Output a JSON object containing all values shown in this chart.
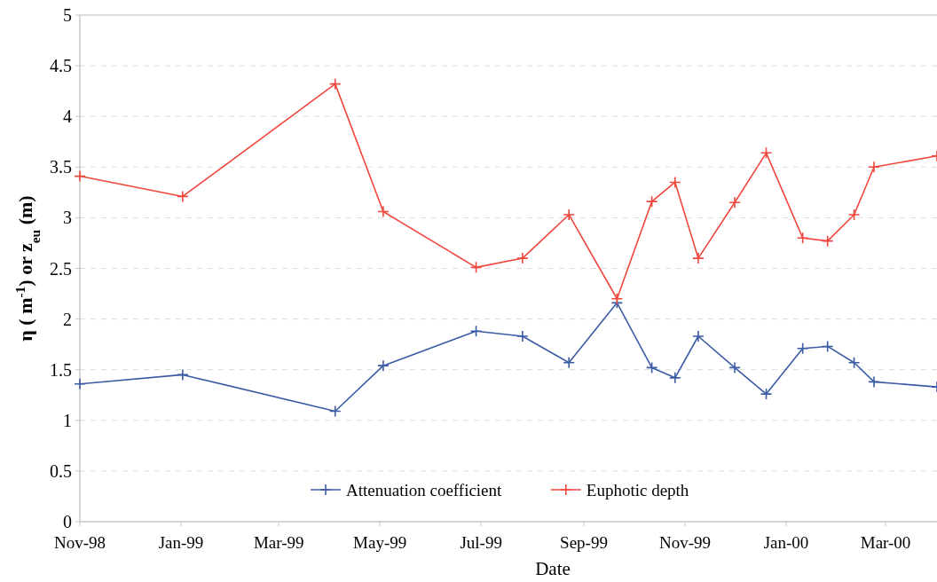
{
  "chart_data": {
    "type": "line",
    "xlabel": "Date",
    "ylabel": "η ( m$^{-1}$) or z$_{eu}$ (m)",
    "x": [
      "1998-11-01",
      "1999-01-02",
      "1999-04-04",
      "1999-05-03",
      "1999-06-28",
      "1999-07-26",
      "1999-08-23",
      "1999-09-21",
      "1999-10-12",
      "1999-10-26",
      "1999-11-09",
      "1999-12-01",
      "1999-12-20",
      "2000-01-11",
      "2000-01-26",
      "2000-02-11",
      "2000-02-23",
      "2000-04-01"
    ],
    "series": [
      {
        "name": "Attenuation coefficient",
        "color": "#3b5ba5",
        "values": [
          1.36,
          1.45,
          1.09,
          1.54,
          1.88,
          1.83,
          1.57,
          2.16,
          1.52,
          1.42,
          1.83,
          1.52,
          1.26,
          1.71,
          1.73,
          1.57,
          1.38,
          1.33
        ]
      },
      {
        "name": "Euphotic depth",
        "color": "#f0463c",
        "values": [
          3.41,
          3.21,
          4.32,
          3.06,
          2.51,
          2.6,
          3.03,
          2.2,
          3.16,
          3.35,
          2.6,
          3.15,
          3.64,
          2.8,
          2.77,
          3.03,
          3.5,
          3.61
        ]
      }
    ],
    "xlim": [
      "1998-11-01",
      "2000-04-01"
    ],
    "xticks": [
      {
        "value": "1998-11-01",
        "label": "Nov-98"
      },
      {
        "value": "1999-01-01",
        "label": "Jan-99"
      },
      {
        "value": "1999-03-01",
        "label": "Mar-99"
      },
      {
        "value": "1999-05-01",
        "label": "May-99"
      },
      {
        "value": "1999-07-01",
        "label": "Jul-99"
      },
      {
        "value": "1999-09-01",
        "label": "Sep-99"
      },
      {
        "value": "1999-11-01",
        "label": "Nov-99"
      },
      {
        "value": "2000-01-01",
        "label": "Jan-00"
      },
      {
        "value": "2000-03-01",
        "label": "Mar-00"
      }
    ],
    "ylim": [
      0,
      5
    ],
    "yticks": [
      0,
      0.5,
      1,
      1.5,
      2,
      2.5,
      3,
      3.5,
      4,
      4.5,
      5
    ],
    "grid": "y",
    "legend": "bottom",
    "marker": "cross",
    "line_style": "solid"
  }
}
